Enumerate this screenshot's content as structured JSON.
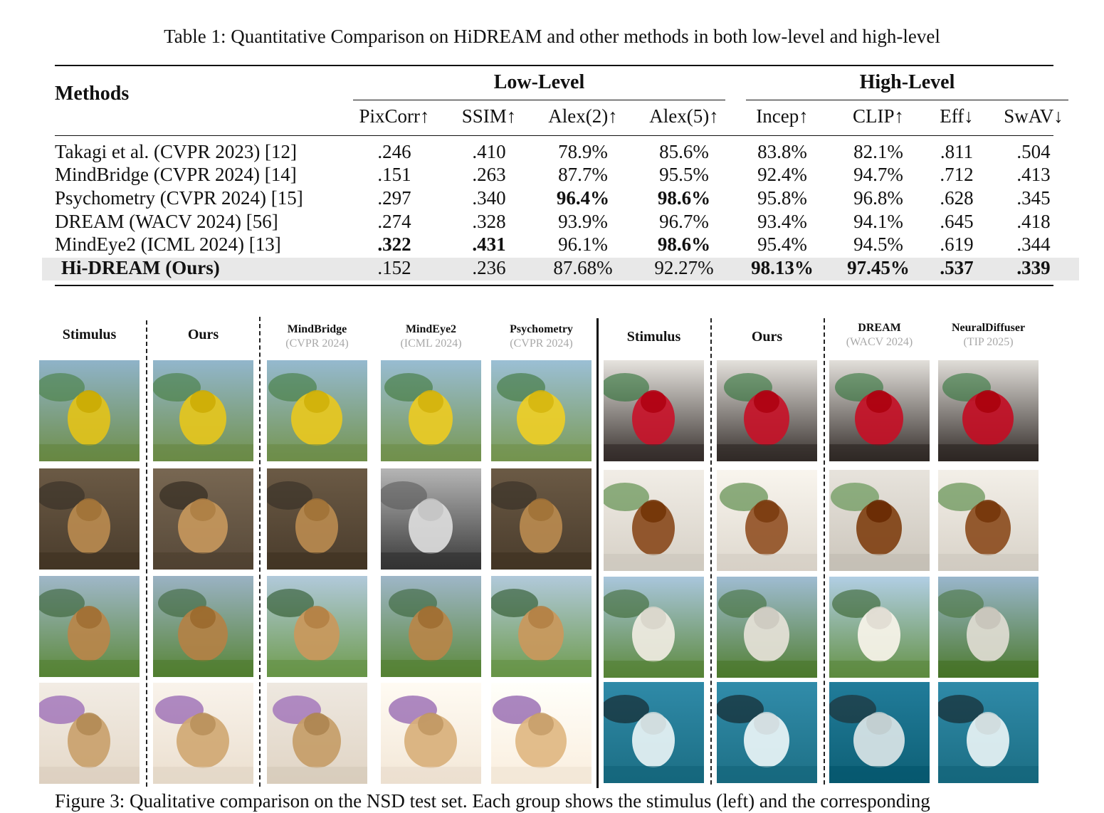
{
  "table": {
    "caption": "Table 1: Quantitative Comparison on HiDREAM and other methods in both low-level and high-level",
    "methods_header": "Methods",
    "group_low": "Low-Level",
    "group_high": "High-Level",
    "columns": [
      "PixCorr↑",
      "SSIM↑",
      "Alex(2)↑",
      "Alex(5)↑",
      "Incep↑",
      "CLIP↑",
      "Eff↓",
      "SwAV↓"
    ],
    "rows": [
      {
        "method": "Takagi et al. (CVPR 2023) [12]",
        "values": [
          ".246",
          ".410",
          "78.9%",
          "85.6%",
          "83.8%",
          "82.1%",
          ".811",
          ".504"
        ],
        "bold": []
      },
      {
        "method": "MindBridge (CVPR 2024) [14]",
        "values": [
          ".151",
          ".263",
          "87.7%",
          "95.5%",
          "92.4%",
          "94.7%",
          ".712",
          ".413"
        ],
        "bold": []
      },
      {
        "method": "Psychometry (CVPR 2024) [15]",
        "values": [
          ".297",
          ".340",
          "96.4%",
          "98.6%",
          "95.8%",
          "96.8%",
          ".628",
          ".345"
        ],
        "bold": [
          2,
          3
        ]
      },
      {
        "method": "DREAM (WACV 2024) [56]",
        "values": [
          ".274",
          ".328",
          "93.9%",
          "96.7%",
          "93.4%",
          "94.1%",
          ".645",
          ".418"
        ],
        "bold": []
      },
      {
        "method": "MindEye2 (ICML 2024) [13]",
        "values": [
          ".322",
          ".431",
          "96.1%",
          "98.6%",
          "95.4%",
          "94.5%",
          ".619",
          ".344"
        ],
        "bold": [
          0,
          1,
          3
        ]
      },
      {
        "method": "Hi-DREAM (Ours)",
        "values": [
          ".152",
          ".236",
          "87.68%",
          "92.27%",
          "98.13%",
          "97.45%",
          ".537",
          ".339"
        ],
        "bold": [
          4,
          5,
          6,
          7
        ],
        "highlight": true
      }
    ]
  },
  "figure": {
    "left_headers": [
      {
        "title": "Stimulus",
        "sub": ""
      },
      {
        "title": "Ours",
        "sub": ""
      },
      {
        "title": "MindBridge",
        "sub": "(CVPR 2024)"
      },
      {
        "title": "MindEye2",
        "sub": "(ICML 2024)"
      },
      {
        "title": "Psychometry",
        "sub": "(CVPR 2024)"
      }
    ],
    "right_headers": [
      {
        "title": "Stimulus",
        "sub": ""
      },
      {
        "title": "Ours",
        "sub": ""
      },
      {
        "title": "DREAM",
        "sub": "(WACV 2024)"
      },
      {
        "title": "NeuralDiffuser",
        "sub": "(TIP 2025)"
      }
    ],
    "left_rows": [
      "fire hydrant",
      "dog",
      "giraffe",
      "teddy bear"
    ],
    "right_rows": [
      "red flowers in vase",
      "stir-fry dish",
      "sheep on grass",
      "surfer on wave"
    ],
    "caption": "Figure 3: Qualitative comparison on the NSD test set. Each group shows the stimulus (left) and the corresponding"
  }
}
